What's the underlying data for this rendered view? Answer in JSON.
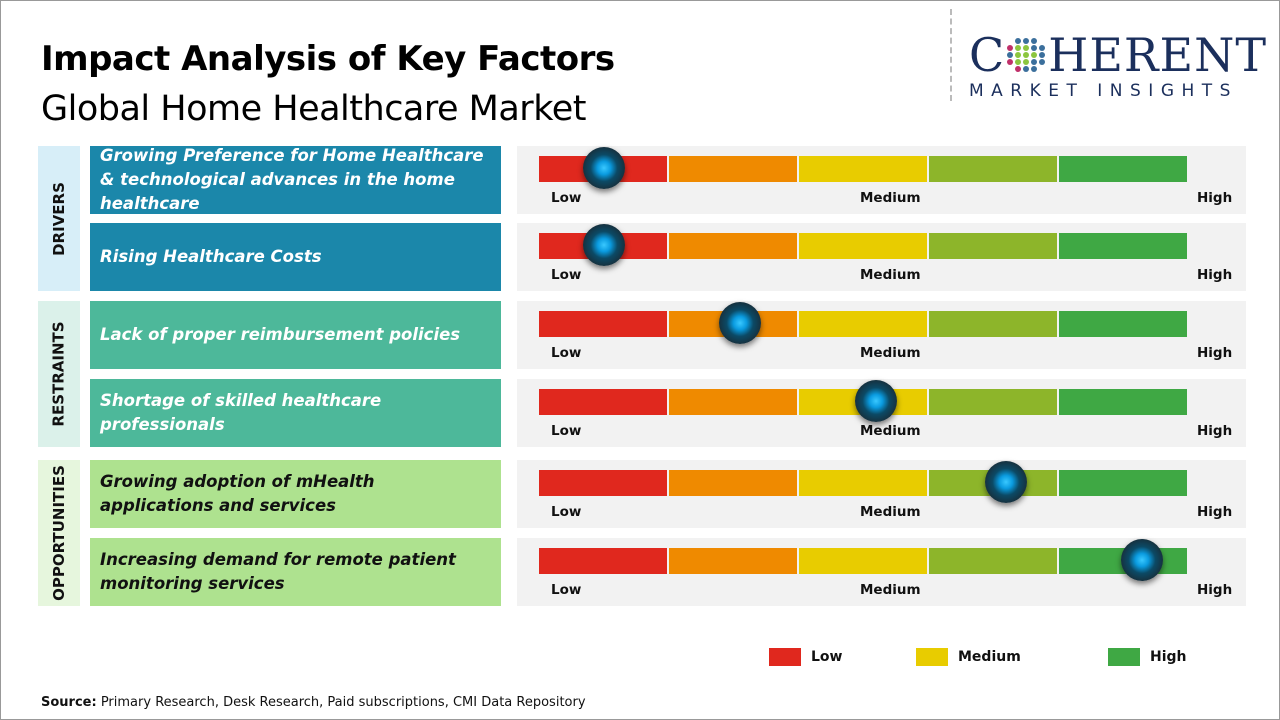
{
  "header": {
    "title": "Impact Analysis of Key Factors",
    "subtitle": "Global Home Healthcare Market"
  },
  "logo": {
    "line1_a": "C",
    "line1_b": "HERENT",
    "line2": "MARKET INSIGHTS"
  },
  "chart_data": {
    "type": "table",
    "scale_labels": [
      "Low",
      "Medium",
      "High"
    ],
    "segment_colors": [
      "#e0281e",
      "#ef8a00",
      "#e8cc00",
      "#8db52a",
      "#3fa844"
    ],
    "categories": [
      {
        "name": "DRIVERS",
        "bg": "#d7eef8",
        "factor_bg": "#1b87aa",
        "text_color": "#ffffff",
        "factors": [
          {
            "label": "Growing Preference for Home Healthcare & technological advances in the home healthcare",
            "impact": 0.1
          },
          {
            "label": "Rising Healthcare  Costs",
            "impact": 0.1
          }
        ]
      },
      {
        "name": "RESTRAINTS",
        "bg": "#dbf1ea",
        "factor_bg": "#4db89a",
        "text_color": "#ffffff",
        "factors": [
          {
            "label": "Lack of proper reimbursement  policies",
            "impact": 0.31
          },
          {
            "label": "Shortage of skilled healthcare professionals",
            "impact": 0.52
          }
        ]
      },
      {
        "name": "OPPORTUNITIES",
        "bg": "#e6f6dd",
        "factor_bg": "#aee28f",
        "text_color": "#111111",
        "factors": [
          {
            "label": "Growing adoption of mHealth applications and services",
            "impact": 0.72
          },
          {
            "label": "Increasing demand for remote patient monitoring services",
            "impact": 0.93
          }
        ]
      }
    ],
    "legend": [
      {
        "label": "Low",
        "color": "#e0281e"
      },
      {
        "label": "Medium",
        "color": "#e8cc00"
      },
      {
        "label": "High",
        "color": "#3fa844"
      }
    ]
  },
  "source": {
    "label": "Source:",
    "text": " Primary Research, Desk Research, Paid subscriptions, CMI Data Repository"
  }
}
